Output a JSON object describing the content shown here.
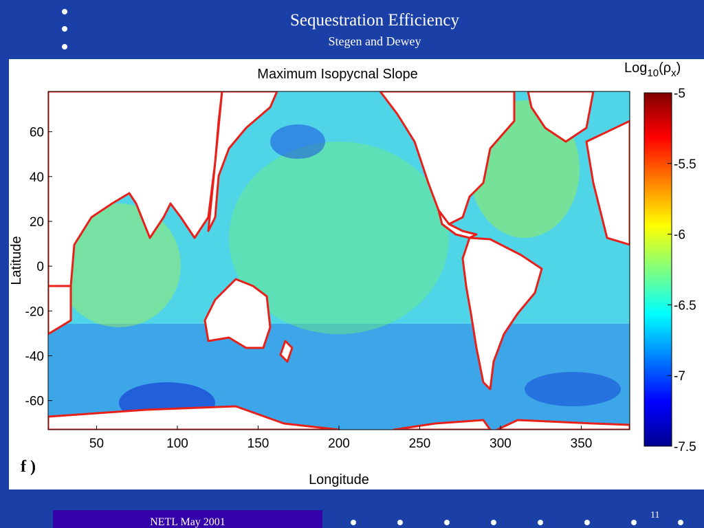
{
  "slide": {
    "title": "Sequestration Efficiency",
    "subtitle": "Stegen and Dewey",
    "footer": "NETL May 2001",
    "page_number": "11",
    "panel_label": "f )",
    "background_color": "#1a3fa6",
    "footer_color": "#3300aa"
  },
  "chart_data": {
    "type": "heatmap",
    "title": "Maximum Isopycnal Slope",
    "xlabel": "Longitude",
    "ylabel": "Latitude",
    "xlim": [
      20,
      380
    ],
    "ylim": [
      -73,
      78
    ],
    "x_ticks": [
      "50",
      "100",
      "150",
      "200",
      "250",
      "300",
      "350"
    ],
    "y_ticks": [
      "60",
      "40",
      "20",
      "0",
      "-20",
      "-40",
      "-60"
    ],
    "colorbar": {
      "title_base": "Log",
      "title_sub": "10",
      "title_rest": "(ρ",
      "title_sub2": "x",
      "title_close": ")",
      "range": [
        -7.5,
        -5
      ],
      "ticks": [
        "-5",
        "-5.5",
        "-6",
        "-6.5",
        "-7",
        "-7.5"
      ],
      "colormap": "jet"
    },
    "land_color": "#ffffff",
    "ocean_dominant_value_range": [
      -7,
      -6
    ]
  }
}
